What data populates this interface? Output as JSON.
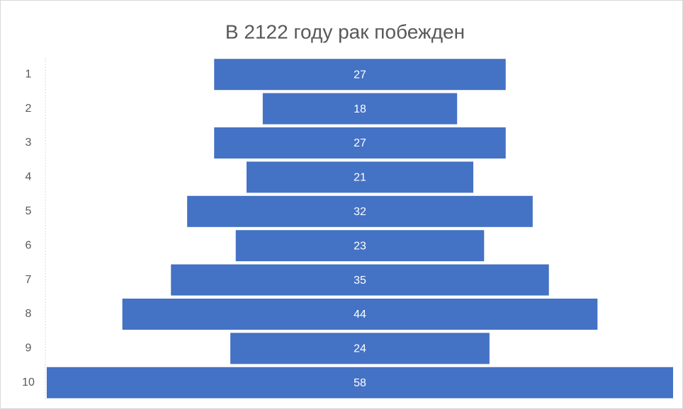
{
  "chart_data": {
    "type": "funnel",
    "title": "В 2122 году рак побежден",
    "categories": [
      "1",
      "2",
      "3",
      "4",
      "5",
      "6",
      "7",
      "8",
      "9",
      "10"
    ],
    "values": [
      27,
      18,
      27,
      21,
      32,
      23,
      35,
      44,
      24,
      58
    ],
    "color": "#4472c4"
  }
}
